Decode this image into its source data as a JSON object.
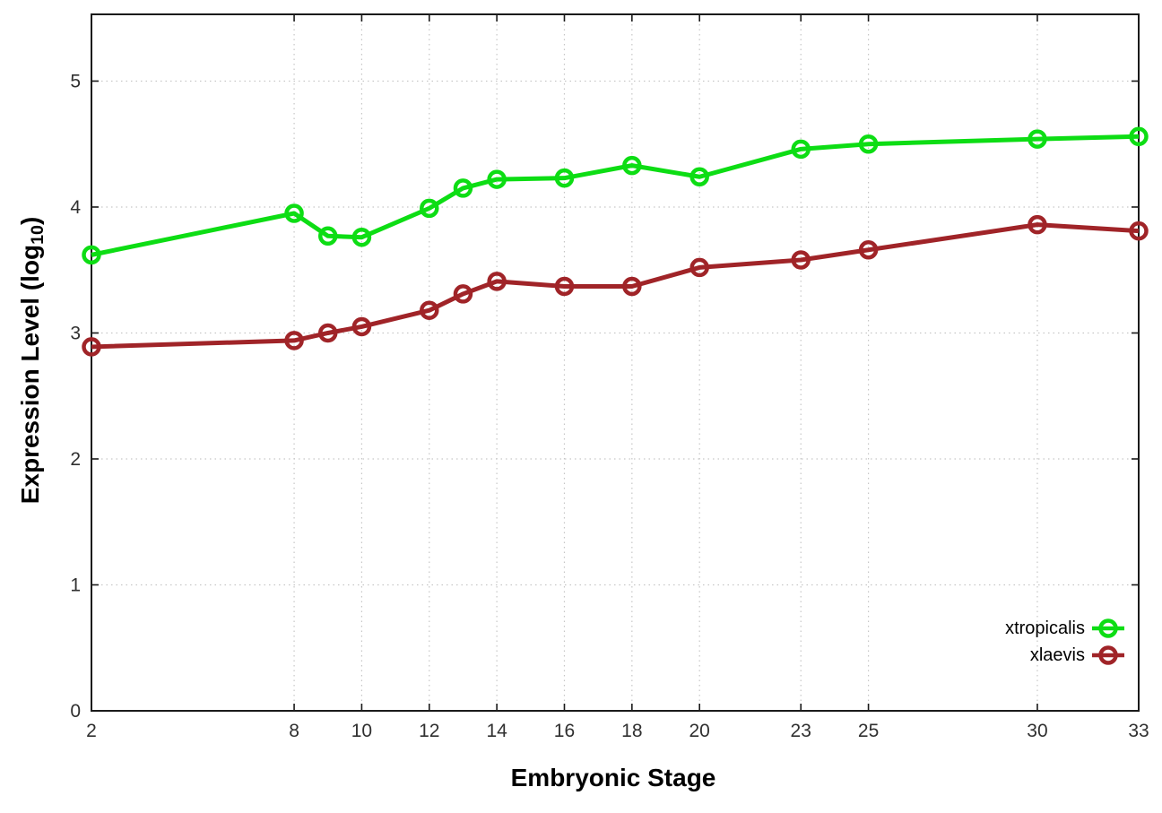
{
  "chart_data": {
    "type": "line",
    "title": "",
    "xlabel": "Embryonic Stage",
    "ylabel_prefix": "Expression Level (log",
    "ylabel_sub": "10",
    "ylabel_suffix": ")",
    "x": [
      2,
      8,
      9,
      10,
      12,
      13,
      14,
      16,
      18,
      20,
      23,
      25,
      30,
      33
    ],
    "x_tick_labels": [
      2,
      8,
      10,
      12,
      14,
      16,
      18,
      20,
      23,
      25,
      30,
      33
    ],
    "y_ticks": [
      0,
      1,
      2,
      3,
      4,
      5
    ],
    "xlim": [
      2,
      33
    ],
    "ylim": [
      0,
      5.53
    ],
    "grid": true,
    "legend_position": "bottom-right-inside",
    "series": [
      {
        "name": "xtropicalis",
        "color": "#0ddd14",
        "values": [
          3.62,
          3.95,
          3.77,
          3.76,
          3.99,
          4.15,
          4.22,
          4.23,
          4.33,
          4.24,
          4.46,
          4.5,
          4.54,
          4.56
        ]
      },
      {
        "name": "xlaevis",
        "color": "#a02428",
        "values": [
          2.89,
          2.94,
          3.0,
          3.05,
          3.18,
          3.31,
          3.41,
          3.37,
          3.37,
          3.52,
          3.58,
          3.66,
          3.86,
          3.81
        ]
      }
    ]
  },
  "styles": {
    "background": "#ffffff",
    "axis_color": "#1a1a1a",
    "grid_color": "#c6c6c6",
    "tick_label_color": "#303030",
    "label_color": "#000000"
  }
}
